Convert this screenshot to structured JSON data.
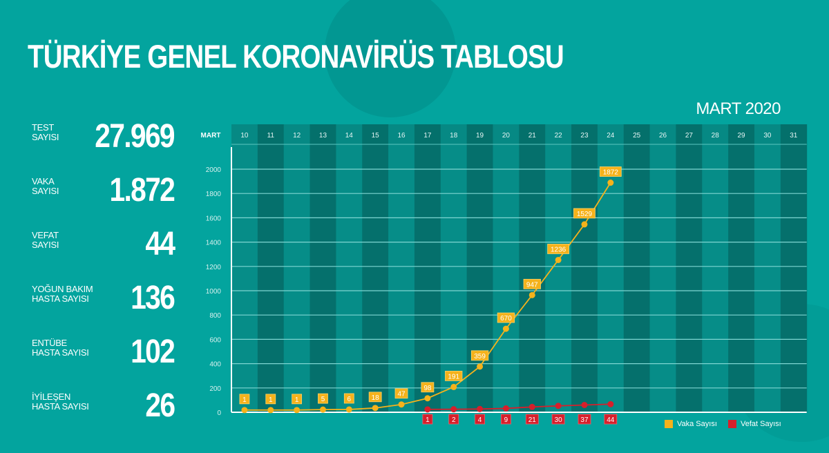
{
  "header": {
    "title": "TÜRKİYE GENEL KORONAVİRÜS TABLOSU",
    "period": "MART 2020"
  },
  "stats": [
    {
      "label": "TEST\nSAYISI",
      "value": "27.969"
    },
    {
      "label": "VAKA\nSAYISI",
      "value": "1.872"
    },
    {
      "label": "VEFAT\nSAYISI",
      "value": "44"
    },
    {
      "label": "YOĞUN BAKIM\nHASTA SAYISI",
      "value": "136"
    },
    {
      "label": "ENTÜBE\nHASTA SAYISI",
      "value": "102"
    },
    {
      "label": "İYİLEŞEN\nHASTA SAYISI",
      "value": "26"
    }
  ],
  "colors": {
    "background": "#03a49e",
    "vaka": "#f5b21b",
    "vefat": "#d71f2b",
    "col_light": "#068d88",
    "col_dark": "#05706c"
  },
  "chart_data": {
    "type": "line",
    "title": "MART 2020",
    "xlabel": "MART",
    "ylabel": "",
    "x": [
      "10",
      "11",
      "12",
      "13",
      "14",
      "15",
      "16",
      "17",
      "18",
      "19",
      "20",
      "21",
      "22",
      "23",
      "24",
      "25",
      "26",
      "27",
      "28",
      "29",
      "30",
      "31"
    ],
    "yticks": [
      0,
      200,
      400,
      600,
      800,
      1000,
      1200,
      1400,
      1600,
      1800,
      2000
    ],
    "ylim": [
      0,
      2000
    ],
    "grid": true,
    "legend_position": "bottom-right",
    "series": [
      {
        "name": "Vaka Sayısı",
        "color": "#f5b21b",
        "values": [
          1,
          1,
          1,
          5,
          6,
          18,
          47,
          98,
          191,
          359,
          670,
          947,
          1236,
          1529,
          1872,
          null,
          null,
          null,
          null,
          null,
          null,
          null
        ]
      },
      {
        "name": "Vefat Sayısı",
        "color": "#d71f2b",
        "values": [
          null,
          null,
          null,
          null,
          null,
          null,
          null,
          1,
          2,
          4,
          9,
          21,
          30,
          37,
          44,
          null,
          null,
          null,
          null,
          null,
          null,
          null
        ]
      }
    ]
  },
  "legend": [
    {
      "label": "Vaka Sayısı",
      "color": "#f5b21b"
    },
    {
      "label": "Vefat Sayısı",
      "color": "#d71f2b"
    }
  ]
}
